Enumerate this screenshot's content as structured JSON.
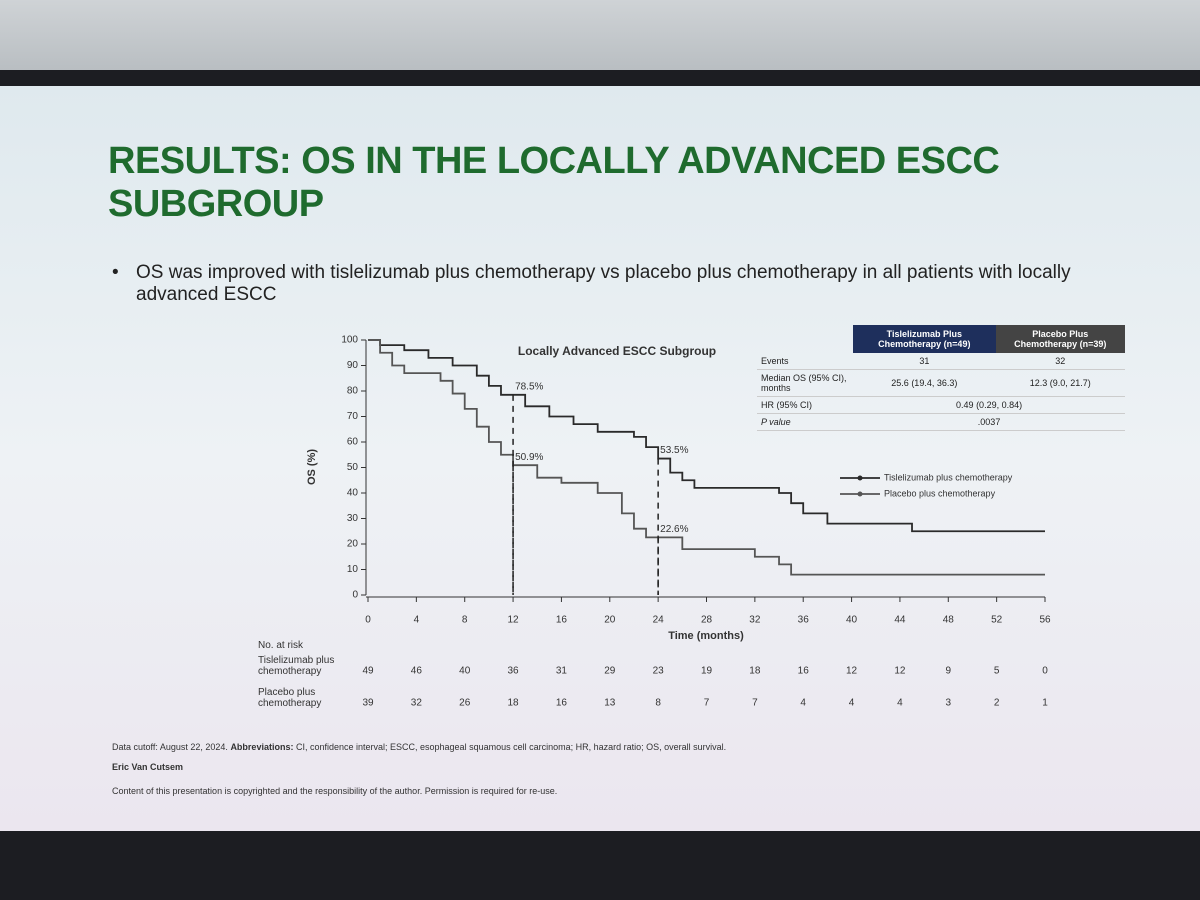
{
  "slide": {
    "title": "RESULTS: OS IN THE LOCALLY ADVANCED ESCC SUBGROUP",
    "bullet": "OS was improved with tislelizumab plus chemotherapy vs placebo plus chemotherapy in all patients with locally advanced ESCC",
    "table": {
      "headers": [
        "Tislelizumab Plus Chemotherapy (n=49)",
        "Placebo Plus Chemotherapy (n=39)"
      ],
      "rows": [
        [
          "Events",
          "31",
          "32"
        ],
        [
          "Median OS (95% CI), months",
          "25.6 (19.4, 36.3)",
          "12.3 (9.0, 21.7)"
        ],
        [
          "HR (95% CI)",
          "0.49 (0.29, 0.84)"
        ],
        [
          "P value",
          ".0037"
        ]
      ]
    },
    "risk_table": {
      "title": "No. at risk",
      "rows": [
        {
          "name": "Tislelizumab plus chemotherapy",
          "values": [
            49,
            46,
            40,
            36,
            31,
            29,
            23,
            19,
            18,
            16,
            12,
            12,
            9,
            5,
            0
          ]
        },
        {
          "name": "Placebo plus chemotherapy",
          "values": [
            39,
            32,
            26,
            18,
            16,
            13,
            8,
            7,
            7,
            4,
            4,
            4,
            3,
            2,
            1
          ]
        }
      ]
    },
    "footnote": {
      "cutoff": "Data cutoff: August 22, 2024.",
      "abbreviations_label": "Abbreviations:",
      "abbreviations": "CI, confidence interval; ESCC, esophageal squamous cell carcinoma; HR, hazard ratio; OS, overall survival."
    },
    "author": "Eric Van Cutsem",
    "copyright": "Content of this presentation is copyrighted and the responsibility of the author. Permission is required for re-use."
  },
  "chart_data": {
    "type": "line",
    "title": "Locally Advanced ESCC Subgroup",
    "x_label": "Time (months)",
    "y_label": "OS (%)",
    "xlim": [
      0,
      56
    ],
    "ylim": [
      0,
      100
    ],
    "xticks": [
      0,
      4,
      8,
      12,
      16,
      20,
      24,
      28,
      32,
      36,
      40,
      44,
      48,
      52,
      56
    ],
    "yticks": [
      0,
      10,
      20,
      30,
      40,
      50,
      60,
      70,
      80,
      90,
      100
    ],
    "series": [
      {
        "name": "Tislelizumab plus chemotherapy",
        "color": "#2a2a2a",
        "x": [
          0,
          1,
          1,
          3,
          3,
          5,
          5,
          7,
          7,
          9,
          9,
          10,
          10,
          11,
          11,
          13,
          13,
          15,
          15,
          17,
          17,
          19,
          19,
          22,
          22,
          23,
          23,
          24,
          24,
          25,
          25,
          26,
          26,
          27,
          27,
          34,
          34,
          35,
          35,
          36,
          36,
          38,
          38,
          45,
          45,
          56
        ],
        "values": [
          100,
          100,
          98,
          98,
          96,
          96,
          93,
          93,
          90,
          90,
          86,
          86,
          82,
          82,
          78.5,
          78.5,
          74,
          74,
          70,
          70,
          67,
          67,
          64,
          64,
          62,
          62,
          58,
          58,
          53.5,
          53.5,
          48,
          48,
          45,
          45,
          42,
          42,
          40,
          40,
          36,
          36,
          32,
          32,
          28,
          28,
          25,
          25
        ]
      },
      {
        "name": "Placebo plus chemotherapy",
        "color": "#555555",
        "x": [
          0,
          1,
          1,
          2,
          2,
          3,
          3,
          6,
          6,
          7,
          7,
          8,
          8,
          9,
          9,
          10,
          10,
          11,
          11,
          12,
          12,
          14,
          14,
          16,
          16,
          19,
          19,
          21,
          21,
          22,
          22,
          23,
          23,
          26,
          26,
          32,
          32,
          34,
          34,
          35,
          35,
          56
        ],
        "values": [
          100,
          100,
          95,
          95,
          90,
          90,
          87,
          87,
          84,
          84,
          79,
          79,
          73,
          73,
          66,
          66,
          60,
          60,
          55,
          55,
          50.9,
          50.9,
          46,
          46,
          44,
          44,
          40,
          40,
          32,
          32,
          26,
          26,
          22.6,
          22.6,
          18,
          18,
          15,
          15,
          12,
          12,
          8,
          8
        ]
      }
    ],
    "annotations": [
      {
        "x": 12,
        "value": 78.5,
        "label": "78.5%"
      },
      {
        "x": 12,
        "value": 50.9,
        "label": "50.9%"
      },
      {
        "x": 24,
        "value": 53.5,
        "label": "53.5%"
      },
      {
        "x": 24,
        "value": 22.6,
        "label": "22.6%"
      }
    ]
  }
}
